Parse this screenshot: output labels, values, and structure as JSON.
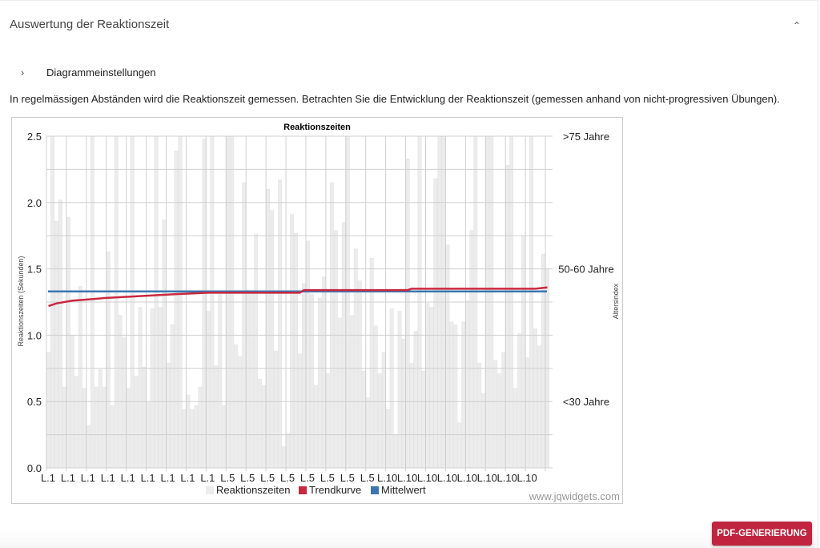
{
  "header": {
    "title": "Auswertung der Reaktionszeit",
    "collapse_icon": "chevron-up-icon"
  },
  "settings": {
    "label": "Diagrammeinstellungen",
    "icon": "chevron-right-icon"
  },
  "description": "In regelmässigen Abständen wird die Reaktionszeit gemessen. Betrachten Sie die Entwicklung der Reaktionszeit (gemessen anhand von nicht-progressiven Übungen).",
  "actions": {
    "pdf_label": "PDF-GENERIERUNG"
  },
  "colors": {
    "bars": "#ececec",
    "trend": "#c9283e",
    "mean": "#3b76b0",
    "button": "#c0243e"
  },
  "chart_data": {
    "type": "bar",
    "title": "Reaktionszeiten",
    "ylabel": "Reaktionszeiten (Sekunden)",
    "ylim": [
      0,
      2.5
    ],
    "y_ticks": [
      "0.0",
      "0.5",
      "1.0",
      "1.5",
      "2.0",
      "2.5"
    ],
    "y_tick_values": [
      0,
      0.5,
      1.0,
      1.5,
      2.0,
      2.5
    ],
    "grid": true,
    "right_axis": {
      "label": "Altersindex",
      "ticks": [
        {
          "label": ">75 Jahre",
          "value": 2.5
        },
        {
          "label": "50-60 Jahre",
          "value": 1.5
        },
        {
          "label": "<30 Jahre",
          "value": 0.5
        }
      ]
    },
    "x_tick_labels": [
      "L.1",
      "L.1",
      "L.1",
      "L.1",
      "L.1",
      "L.1",
      "L.1",
      "L.1",
      "L.1",
      "L.5",
      "L.5",
      "L.5",
      "L.5",
      "L.5",
      "L.5",
      "L.5",
      "L.5",
      "L.10",
      "L.10",
      "L.10",
      "L.10",
      "L.10",
      "L.10",
      "L.10",
      "L.10"
    ],
    "series": [
      {
        "name": "Reaktionszeiten",
        "type": "bar",
        "values": [
          0.87,
          2.5,
          1.86,
          2.02,
          0.61,
          1.89,
          1.0,
          0.69,
          1.37,
          0.6,
          0.32,
          2.5,
          0.61,
          0.74,
          0.61,
          1.63,
          0.47,
          2.5,
          1.15,
          0.98,
          0.6,
          2.5,
          0.69,
          1.21,
          0.76,
          0.5,
          1.2,
          2.5,
          1.21,
          1.87,
          0.79,
          1.08,
          2.39,
          2.5,
          0.44,
          0.55,
          0.44,
          0.47,
          0.61,
          2.48,
          1.18,
          2.5,
          0.77,
          1.33,
          0.47,
          2.5,
          2.5,
          0.93,
          0.84,
          2.15,
          1.34,
          1.32,
          1.76,
          0.67,
          0.62,
          2.1,
          1.94,
          0.88,
          2.17,
          0.16,
          0.26,
          1.91,
          1.77,
          0.86,
          1.39,
          1.71,
          1.31,
          0.62,
          1.28,
          1.44,
          0.71,
          2.15,
          1.79,
          1.13,
          1.85,
          2.5,
          1.15,
          1.65,
          1.41,
          0.73,
          0.53,
          1.58,
          1.07,
          0.71,
          0.87,
          0.44,
          1.2,
          0.25,
          1.18,
          0.97,
          2.33,
          0.79,
          1.03,
          2.5,
          0.73,
          1.24,
          1.21,
          2.18,
          2.5,
          2.5,
          1.68,
          1.1,
          1.08,
          0.34,
          1.1,
          1.26,
          1.79,
          2.5,
          0.79,
          0.56,
          2.5,
          2.5,
          0.81,
          0.71,
          0.87,
          2.28,
          2.5,
          0.6,
          1.01,
          1.75,
          0.83,
          2.5,
          1.05,
          0.92,
          1.61,
          1.5
        ]
      },
      {
        "name": "Trendkurve",
        "type": "line",
        "points": [
          [
            0,
            1.22
          ],
          [
            2,
            1.24
          ],
          [
            6,
            1.26
          ],
          [
            10,
            1.27
          ],
          [
            14,
            1.28
          ],
          [
            20,
            1.29
          ],
          [
            26,
            1.3
          ],
          [
            32,
            1.31
          ],
          [
            40,
            1.32
          ],
          [
            45,
            1.32
          ],
          [
            63,
            1.32
          ],
          [
            64,
            1.34
          ],
          [
            90,
            1.34
          ],
          [
            91,
            1.35
          ],
          [
            122,
            1.35
          ],
          [
            125,
            1.36
          ]
        ]
      },
      {
        "name": "Mittelwert",
        "type": "line",
        "value": 1.33
      }
    ],
    "legend_position": "bottom",
    "watermark": "www.jqwidgets.com"
  }
}
